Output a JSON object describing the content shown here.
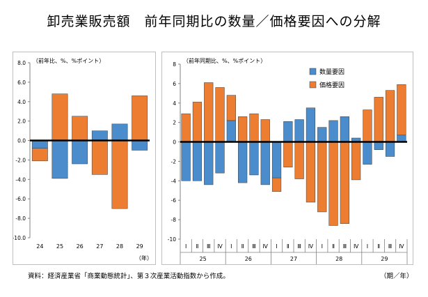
{
  "title": "卸売業販売額　前年同期比の数量／価格要因への分解",
  "source": "資料：経済産業省「商業動態統計」、第３次産業活動指数から作成。",
  "period_unit": "（期／年）",
  "colors": {
    "quantity": "#4a8ccc",
    "price": "#ed7d31",
    "zero_line": "#000000",
    "axis": "#808080"
  },
  "chart_data": [
    {
      "type": "bar",
      "stacked": true,
      "unit_label": "（前年比、%、%ポイント）",
      "x_unit": "（年）",
      "categories": [
        "24",
        "25",
        "26",
        "27",
        "28",
        "29"
      ],
      "ylim": [
        -10.0,
        8.0
      ],
      "yticks": [
        "8.0",
        "6.0",
        "4.0",
        "2.0",
        "0.0",
        "-2.0",
        "-4.0",
        "-6.0",
        "-8.0",
        "-10.0"
      ],
      "series": [
        {
          "key": "quantity",
          "values": [
            -0.8,
            -3.9,
            -2.4,
            1.0,
            1.7,
            -1.0
          ]
        },
        {
          "key": "price",
          "values": [
            -1.3,
            4.8,
            2.5,
            -3.5,
            -7.0,
            4.6
          ]
        }
      ],
      "grid": false
    },
    {
      "type": "bar",
      "stacked": true,
      "unit_label": "（前年同期比、%、%ポイント）",
      "categories": [
        "Ⅰ",
        "Ⅱ",
        "Ⅲ",
        "Ⅳ",
        "Ⅰ",
        "Ⅱ",
        "Ⅲ",
        "Ⅳ",
        "Ⅰ",
        "Ⅱ",
        "Ⅲ",
        "Ⅳ",
        "Ⅰ",
        "Ⅱ",
        "Ⅲ",
        "Ⅳ",
        "Ⅰ",
        "Ⅱ",
        "Ⅲ",
        "Ⅳ"
      ],
      "groups": [
        "25",
        "26",
        "27",
        "28",
        "29"
      ],
      "ylim": [
        -10,
        8
      ],
      "yticks": [
        "8",
        "6",
        "4",
        "2",
        "0",
        "-2",
        "-4",
        "-6",
        "-8",
        "-10"
      ],
      "legend": [
        "数量要因",
        "価格要因"
      ],
      "legend_position": "top-right",
      "series": [
        {
          "name": "数量要因",
          "key": "quantity",
          "values": [
            -4.0,
            -4.0,
            -4.4,
            -3.2,
            2.2,
            -4.2,
            -3.4,
            -4.4,
            -3.7,
            2.1,
            2.3,
            3.5,
            1.5,
            2.2,
            2.6,
            0.4,
            -2.3,
            -0.8,
            -1.5,
            0.7
          ]
        },
        {
          "name": "価格要因",
          "key": "price",
          "values": [
            2.9,
            4.1,
            6.1,
            5.6,
            2.6,
            2.6,
            2.9,
            2.3,
            -1.4,
            -2.6,
            -3.8,
            -6.2,
            -7.2,
            -8.6,
            -8.4,
            -3.9,
            3.3,
            4.6,
            5.3,
            5.2
          ]
        }
      ],
      "grid": false
    }
  ]
}
